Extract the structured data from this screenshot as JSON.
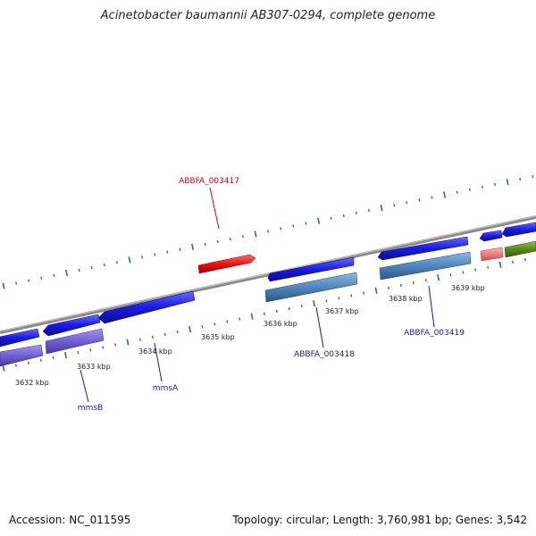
{
  "title": "Acinetobacter baumannii AB307-0294, complete genome",
  "footer": {
    "accession": "Accession: NC_011595",
    "summary": "Topology: circular; Length: 3,760,981 bp; Genes: 3,542"
  },
  "colors": {
    "backbone": "#888888",
    "tick": "#2e7d32",
    "gene_blue": "#1a1ae6",
    "gene_steel": "#4f87c0",
    "gene_purple": "#7060d8",
    "gene_red": "#ee1111",
    "gene_pink": "#f08080",
    "gene_olive": "#5a8a1a",
    "label_blue": "#1a1aa0",
    "label_red": "#dd0000"
  },
  "scale": {
    "unit": "kbp",
    "ticks": [
      {
        "value": 3632,
        "label": "3632 kbp"
      },
      {
        "value": 3633,
        "label": "3633 kbp"
      },
      {
        "value": 3634,
        "label": "3634 kbp"
      },
      {
        "value": 3635,
        "label": "3635 kbp"
      },
      {
        "value": 3636,
        "label": "3636 kbp"
      },
      {
        "value": 3637,
        "label": "3637 kbp"
      },
      {
        "value": 3638,
        "label": "3638 kbp"
      },
      {
        "value": 3639,
        "label": "3639 kbp"
      }
    ]
  },
  "gene_labels": [
    {
      "id": "ABBFA_003417",
      "text": "ABBFA_003417",
      "color": "red"
    },
    {
      "id": "ABBFA_003418",
      "text": "ABBFA_003418",
      "color": "blue"
    },
    {
      "id": "ABBFA_003419",
      "text": "ABBFA_003419",
      "color": "blue"
    },
    {
      "id": "mmsA",
      "text": "mmsA",
      "color": "blue"
    },
    {
      "id": "mmsB",
      "text": "mmsB",
      "color": "blue"
    }
  ]
}
